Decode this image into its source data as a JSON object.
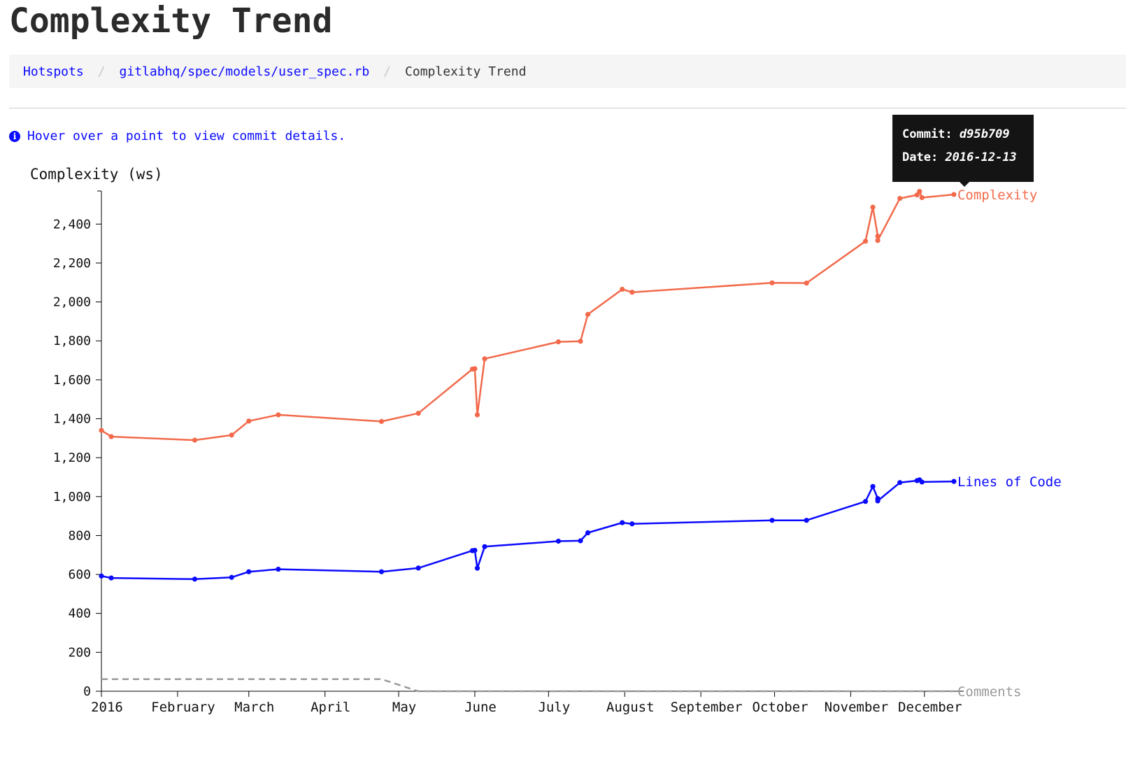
{
  "page": {
    "title": "Complexity Trend",
    "hint": "Hover over a point to view commit details."
  },
  "breadcrumb": {
    "items": [
      "Hotspots",
      "gitlabhq/spec/models/user_spec.rb"
    ],
    "current": "Complexity Trend",
    "separator": "/"
  },
  "tooltip": {
    "commit_label": "Commit:",
    "commit_value": "d95b709",
    "date_label": "Date:",
    "date_value": "2016-12-13"
  },
  "chart_data": {
    "type": "line",
    "ylabel": "Complexity (ws)",
    "ylim": [
      0,
      2570
    ],
    "yticks": [
      0,
      200,
      400,
      600,
      800,
      1000,
      1200,
      1400,
      1600,
      1800,
      2000,
      2200,
      2400
    ],
    "ytick_labels": [
      "0",
      "200",
      "400",
      "600",
      "800",
      "1,000",
      "1,200",
      "1,400",
      "1,600",
      "1,800",
      "2,000",
      "2,200",
      "2,400"
    ],
    "xlim": [
      "2016-01-01",
      "2016-12-17"
    ],
    "xticks": [
      {
        "label": "2016",
        "date": "2016-01-01"
      },
      {
        "label": "February",
        "date": "2016-02-01"
      },
      {
        "label": "March",
        "date": "2016-03-01"
      },
      {
        "label": "April",
        "date": "2016-04-01"
      },
      {
        "label": "May",
        "date": "2016-05-01"
      },
      {
        "label": "June",
        "date": "2016-06-01"
      },
      {
        "label": "July",
        "date": "2016-07-01"
      },
      {
        "label": "August",
        "date": "2016-08-01"
      },
      {
        "label": "September",
        "date": "2016-09-01"
      },
      {
        "label": "October",
        "date": "2016-10-01"
      },
      {
        "label": "November",
        "date": "2016-11-01"
      },
      {
        "label": "December",
        "date": "2016-12-01"
      }
    ],
    "series": [
      {
        "name": "Complexity",
        "color": "#f26a4b",
        "markers": true,
        "points": [
          [
            "2016-01-01",
            1340
          ],
          [
            "2016-01-05",
            1308
          ],
          [
            "2016-02-08",
            1290
          ],
          [
            "2016-02-23",
            1316
          ],
          [
            "2016-03-01",
            1388
          ],
          [
            "2016-03-13",
            1420
          ],
          [
            "2016-04-24",
            1386
          ],
          [
            "2016-05-09",
            1428
          ],
          [
            "2016-05-31",
            1655
          ],
          [
            "2016-06-01",
            1657
          ],
          [
            "2016-06-02",
            1420
          ],
          [
            "2016-06-05",
            1708
          ],
          [
            "2016-07-05",
            1795
          ],
          [
            "2016-07-14",
            1798
          ],
          [
            "2016-07-17",
            1936
          ],
          [
            "2016-07-31",
            2065
          ],
          [
            "2016-08-04",
            2050
          ],
          [
            "2016-09-30",
            2098
          ],
          [
            "2016-10-14",
            2097
          ],
          [
            "2016-11-07",
            2312
          ],
          [
            "2016-11-10",
            2487
          ],
          [
            "2016-11-12",
            2338
          ],
          [
            "2016-11-12",
            2316
          ],
          [
            "2016-11-21",
            2532
          ],
          [
            "2016-11-28",
            2550
          ],
          [
            "2016-11-29",
            2568
          ],
          [
            "2016-11-30",
            2536
          ],
          [
            "2016-12-13",
            2552
          ]
        ]
      },
      {
        "name": "Lines of Code",
        "color": "#0a0aff",
        "markers": true,
        "points": [
          [
            "2016-01-01",
            592
          ],
          [
            "2016-01-05",
            582
          ],
          [
            "2016-02-08",
            576
          ],
          [
            "2016-02-23",
            585
          ],
          [
            "2016-03-01",
            614
          ],
          [
            "2016-03-13",
            627
          ],
          [
            "2016-04-24",
            614
          ],
          [
            "2016-05-09",
            633
          ],
          [
            "2016-05-31",
            722
          ],
          [
            "2016-06-01",
            724
          ],
          [
            "2016-06-02",
            632
          ],
          [
            "2016-06-05",
            743
          ],
          [
            "2016-07-05",
            771
          ],
          [
            "2016-07-14",
            773
          ],
          [
            "2016-07-17",
            814
          ],
          [
            "2016-07-31",
            866
          ],
          [
            "2016-08-04",
            860
          ],
          [
            "2016-09-30",
            878
          ],
          [
            "2016-10-14",
            878
          ],
          [
            "2016-11-07",
            975
          ],
          [
            "2016-11-10",
            1052
          ],
          [
            "2016-11-12",
            990
          ],
          [
            "2016-11-12",
            978
          ],
          [
            "2016-11-21",
            1072
          ],
          [
            "2016-11-28",
            1082
          ],
          [
            "2016-11-29",
            1086
          ],
          [
            "2016-11-30",
            1075
          ],
          [
            "2016-12-13",
            1078
          ]
        ]
      },
      {
        "name": "Comments",
        "color": "#9a9a9a",
        "dashed": true,
        "markers": false,
        "points": [
          [
            "2016-01-01",
            62
          ],
          [
            "2016-04-24",
            62
          ],
          [
            "2016-05-09",
            0
          ],
          [
            "2016-12-13",
            0
          ]
        ]
      }
    ]
  }
}
